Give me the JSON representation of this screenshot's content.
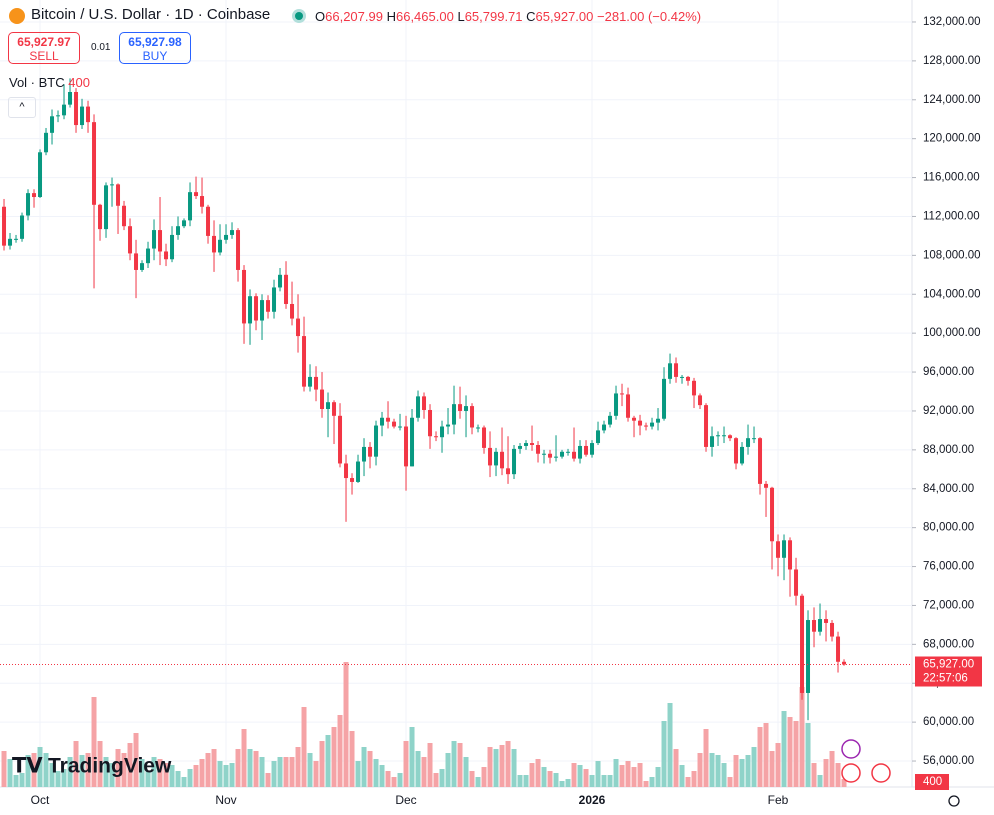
{
  "header": {
    "title": "Bitcoin / U.S. Dollar · 1D · Coinbase",
    "ohlc_keys": [
      "O",
      "H",
      "L",
      "C"
    ],
    "ohlc_labels": [
      "66,207.99",
      "66,465.00",
      "65,799.71",
      "65,927.00"
    ],
    "change": "−281.00 (−0.42%)",
    "sell_price": "65,927.97",
    "sell": "SELL",
    "spread": "0.01",
    "buy_price": "65,927.98",
    "buy": "BUY",
    "volume_title": "Vol · BTC",
    "logo": "TradingView"
  },
  "chart_data": {
    "type": "candlestick",
    "up_color": "#089981",
    "down_color": "#f23645",
    "volume_up_color": "#8fd3c9",
    "volume_down_color": "#f5a3a6",
    "ylim": [
      53330,
      134260
    ],
    "xlim": [
      -0.67,
      151.33
    ],
    "grid": true,
    "yticks": [
      {
        "value": 132000,
        "label": "132,000.00"
      },
      {
        "value": 128000,
        "label": "128,000.00"
      },
      {
        "value": 124000,
        "label": "124,000.00"
      },
      {
        "value": 120000,
        "label": "120,000.00"
      },
      {
        "value": 116000,
        "label": "116,000.00"
      },
      {
        "value": 112000,
        "label": "112,000.00"
      },
      {
        "value": 108000,
        "label": "108,000.00"
      },
      {
        "value": 104000,
        "label": "104,000.00"
      },
      {
        "value": 100000,
        "label": "100,000.00"
      },
      {
        "value": 96000,
        "label": "96,000.00"
      },
      {
        "value": 92000,
        "label": "92,000.00"
      },
      {
        "value": 88000,
        "label": "88,000.00"
      },
      {
        "value": 84000,
        "label": "84,000.00"
      },
      {
        "value": 80000,
        "label": "80,000.00"
      },
      {
        "value": 76000,
        "label": "76,000.00"
      },
      {
        "value": 72000,
        "label": "72,000.00"
      },
      {
        "value": 68000,
        "label": "68,000.00"
      },
      {
        "value": 64000,
        "label": "64,000.00"
      },
      {
        "value": 60000,
        "label": "60,000.00"
      },
      {
        "value": 56000,
        "label": "56,000.00"
      }
    ],
    "xticks": [
      {
        "value": 6,
        "label": "Oct"
      },
      {
        "value": 37,
        "label": "Nov"
      },
      {
        "value": 67,
        "label": "Dec"
      },
      {
        "value": 98,
        "label": "2026"
      },
      {
        "value": 129,
        "label": "Feb"
      }
    ],
    "open": [
      113000,
      109000,
      109700,
      109700,
      112100,
      114400,
      114000,
      118600,
      120600,
      122300,
      122400,
      123500,
      124800,
      121400,
      123300,
      121700,
      113200,
      110700,
      115200,
      115300,
      113100,
      111000,
      108200,
      106500,
      107200,
      108700,
      110600,
      108400,
      107600,
      110100,
      111000,
      111600,
      114500,
      114100,
      113000,
      110000,
      108300,
      109600,
      110100,
      110600,
      106500,
      101000,
      103800,
      101300,
      103400,
      102200,
      104700,
      106000,
      103000,
      101500,
      99700,
      94500,
      95500,
      94200,
      92200,
      92900,
      91500,
      86600,
      85100,
      84700,
      86800,
      88300,
      87300,
      90500,
      91300,
      90900,
      90400,
      90400,
      86300,
      91300,
      93500,
      92100,
      89400,
      89300,
      90400,
      90600,
      92700,
      92000,
      92500,
      90300,
      90300,
      88200,
      86400,
      87800,
      86100,
      85500,
      88100,
      88400,
      88700,
      88500,
      87600,
      87600,
      87200,
      87300,
      87800,
      87800,
      87100,
      88400,
      87500,
      88700,
      90000,
      90600,
      91500,
      93800,
      93700,
      91300,
      91000,
      90500,
      90400,
      90800,
      91200,
      95300,
      96900,
      95500,
      95500,
      95100,
      93600,
      92600,
      88300,
      89400,
      89500,
      89500,
      89200,
      86600,
      88300,
      89200,
      89200,
      84500,
      84100,
      78600,
      76900,
      78700,
      75700,
      73000,
      63000,
      70500,
      69300,
      70600,
      70200,
      68800,
      66207.99
    ],
    "high": [
      113800,
      110300,
      110100,
      112400,
      114800,
      114800,
      118900,
      121100,
      123000,
      122900,
      125600,
      126200,
      125200,
      124100,
      123900,
      122500,
      113300,
      115500,
      116000,
      115400,
      113600,
      111800,
      109600,
      107500,
      109400,
      111700,
      114000,
      109200,
      111000,
      112000,
      111800,
      115500,
      116100,
      116000,
      113200,
      111600,
      111200,
      111200,
      111400,
      110800,
      107000,
      104500,
      104100,
      104000,
      103900,
      105500,
      106700,
      107400,
      105300,
      104000,
      101700,
      96800,
      96600,
      96000,
      93900,
      93100,
      92800,
      87500,
      85600,
      87500,
      89200,
      88800,
      91000,
      91900,
      93000,
      91200,
      91700,
      91500,
      92200,
      94100,
      93900,
      92700,
      89900,
      91000,
      92300,
      94600,
      94500,
      93600,
      92800,
      90600,
      90500,
      89900,
      88200,
      90300,
      89400,
      88500,
      88700,
      89000,
      90500,
      88900,
      88000,
      88000,
      89500,
      88000,
      88100,
      90300,
      89000,
      89000,
      89000,
      90900,
      91000,
      91900,
      94600,
      94800,
      94400,
      91500,
      91600,
      90800,
      91300,
      92300,
      96500,
      97900,
      97500,
      95700,
      95600,
      95400,
      93800,
      92800,
      90400,
      89900,
      90400,
      89600,
      89300,
      88800,
      90600,
      90400,
      89300,
      84800,
      84200,
      79300,
      79300,
      79000,
      76900,
      73200,
      71500,
      71800,
      72200,
      71500,
      70500,
      69300,
      66465
    ],
    "low": [
      108500,
      108600,
      109300,
      109400,
      111600,
      112900,
      113900,
      118300,
      119400,
      121700,
      122000,
      123200,
      120600,
      121000,
      120600,
      104600,
      109500,
      109800,
      113000,
      110200,
      110600,
      107500,
      103600,
      106300,
      106700,
      107500,
      107000,
      106900,
      107300,
      109600,
      110800,
      111000,
      113800,
      112300,
      109200,
      106300,
      108000,
      109200,
      109700,
      105300,
      98900,
      98800,
      100300,
      99300,
      101500,
      101500,
      104300,
      102500,
      100800,
      98000,
      94000,
      94000,
      93000,
      91300,
      89300,
      88600,
      86200,
      80600,
      83400,
      84600,
      85300,
      86100,
      86400,
      89400,
      90200,
      90200,
      90000,
      83800,
      86300,
      90900,
      91200,
      88100,
      88900,
      87700,
      89600,
      89600,
      91200,
      89300,
      89600,
      89800,
      87600,
      85200,
      85300,
      85400,
      84500,
      85000,
      87600,
      88000,
      87900,
      86700,
      86600,
      86600,
      86800,
      87100,
      87400,
      86800,
      86600,
      87300,
      87200,
      88500,
      89700,
      90300,
      91100,
      92500,
      90900,
      89300,
      89500,
      90000,
      90100,
      90000,
      91000,
      94800,
      94900,
      94800,
      94600,
      92300,
      92200,
      87800,
      87300,
      88400,
      88700,
      88900,
      86000,
      86400,
      87500,
      88700,
      83400,
      81100,
      75700,
      75000,
      74600,
      72900,
      72000,
      62300,
      60200,
      67700,
      68900,
      68300,
      68300,
      65100,
      65799.71
    ],
    "close": [
      109000,
      109700,
      109700,
      112100,
      114400,
      114000,
      118600,
      120600,
      122300,
      122400,
      123500,
      124800,
      121400,
      123300,
      121700,
      113200,
      110700,
      115200,
      115300,
      113100,
      111000,
      108200,
      106500,
      107200,
      108700,
      110600,
      108400,
      107600,
      110100,
      111000,
      111600,
      114500,
      114100,
      113000,
      110000,
      108300,
      109600,
      110100,
      110600,
      106500,
      101000,
      103800,
      101300,
      103400,
      102200,
      104700,
      106000,
      103000,
      101500,
      99700,
      94500,
      95500,
      94200,
      92200,
      92900,
      91500,
      86600,
      85100,
      84700,
      86800,
      88300,
      87300,
      90500,
      91300,
      90900,
      90400,
      90400,
      86300,
      91300,
      93500,
      92100,
      89400,
      89300,
      90400,
      90600,
      92700,
      92000,
      92500,
      90300,
      90300,
      88200,
      86400,
      87800,
      86100,
      85500,
      88100,
      88400,
      88700,
      88500,
      87600,
      87600,
      87200,
      87300,
      87800,
      87800,
      87100,
      88400,
      87500,
      88700,
      90000,
      90600,
      91500,
      93800,
      93700,
      91300,
      91000,
      90500,
      90400,
      90800,
      91200,
      95300,
      96900,
      95500,
      95500,
      95100,
      93600,
      92600,
      88300,
      89400,
      89500,
      89500,
      89200,
      86600,
      88300,
      89200,
      89200,
      84500,
      84100,
      78600,
      76900,
      78700,
      75700,
      73000,
      63000,
      70500,
      69300,
      70600,
      70200,
      68800,
      66208,
      65927
    ],
    "last_label": "65,927.00",
    "countdown": "22:57:06",
    "volume": {
      "values": [
        1800,
        1400,
        600,
        700,
        1600,
        1700,
        2000,
        1700,
        1200,
        800,
        900,
        1500,
        2300,
        1600,
        1700,
        4500,
        2300,
        1500,
        1200,
        1900,
        1700,
        2200,
        2700,
        1400,
        800,
        1500,
        1400,
        1200,
        1100,
        800,
        500,
        900,
        1100,
        1400,
        1700,
        1900,
        1300,
        1100,
        1200,
        1900,
        2900,
        1900,
        1800,
        1500,
        700,
        1300,
        1500,
        1500,
        1500,
        2000,
        4000,
        1700,
        1300,
        2300,
        2600,
        3000,
        3600,
        6250,
        2800,
        1300,
        2000,
        1800,
        1400,
        1100,
        800,
        500,
        700,
        2300,
        3000,
        1800,
        1500,
        2200,
        700,
        900,
        1700,
        2300,
        2200,
        1500,
        800,
        500,
        1000,
        2000,
        1900,
        2100,
        2300,
        1900,
        600,
        600,
        1200,
        1400,
        1000,
        800,
        700,
        300,
        400,
        1200,
        1100,
        900,
        600,
        1300,
        600,
        600,
        1400,
        1100,
        1300,
        1000,
        1200,
        300,
        500,
        1000,
        3300,
        4200,
        1900,
        1100,
        500,
        800,
        1700,
        2900,
        1700,
        1600,
        1200,
        500,
        1600,
        1400,
        1600,
        2000,
        3000,
        3200,
        1800,
        2200,
        3800,
        3500,
        3300,
        5000,
        3200,
        1200,
        600,
        1400,
        1800,
        1200,
        400
      ]
    }
  }
}
